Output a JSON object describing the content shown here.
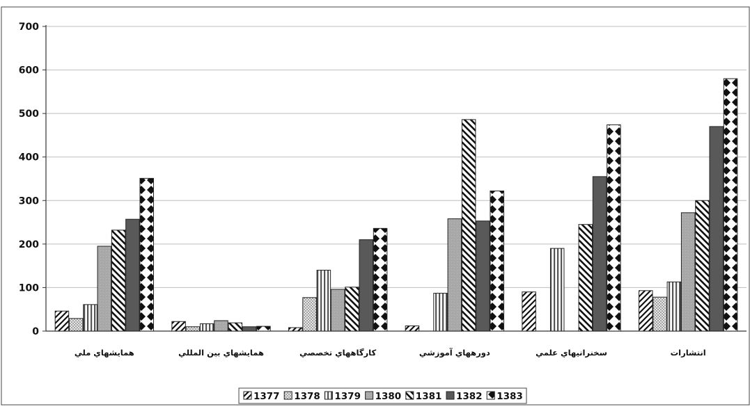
{
  "chart_data": {
    "type": "bar",
    "categories": [
      "همايشهاي ملي",
      "همايشهاي بين المللي",
      "كارگاههاي تخصصي",
      "دورههاي آموزشي",
      "سخنرانيهاي علمي",
      "انتشارات"
    ],
    "series": [
      {
        "name": "1377",
        "values": [
          46,
          22,
          8,
          12,
          90,
          93
        ]
      },
      {
        "name": "1378",
        "values": [
          29,
          10,
          77,
          0,
          0,
          78
        ]
      },
      {
        "name": "1379",
        "values": [
          61,
          17,
          140,
          87,
          190,
          113
        ]
      },
      {
        "name": "1380",
        "values": [
          195,
          24,
          96,
          258,
          0,
          272
        ]
      },
      {
        "name": "1381",
        "values": [
          232,
          19,
          101,
          486,
          245,
          300
        ]
      },
      {
        "name": "1382",
        "values": [
          257,
          10,
          210,
          253,
          355,
          470
        ]
      },
      {
        "name": "1383",
        "values": [
          351,
          11,
          236,
          322,
          474,
          580
        ]
      }
    ],
    "ylim": [
      0,
      700
    ],
    "yticks": [
      "0",
      "100",
      "200",
      "300",
      "400",
      "500",
      "600",
      "700"
    ],
    "grid": true,
    "legend_position": "bottom",
    "colors": {
      "1377": "#1a1a1a",
      "1378": "#bbbbbb",
      "1379": "#888888",
      "1380": "#aaaaaa",
      "1381": "#222222",
      "1382": "#555555",
      "1383": "#111111"
    }
  }
}
